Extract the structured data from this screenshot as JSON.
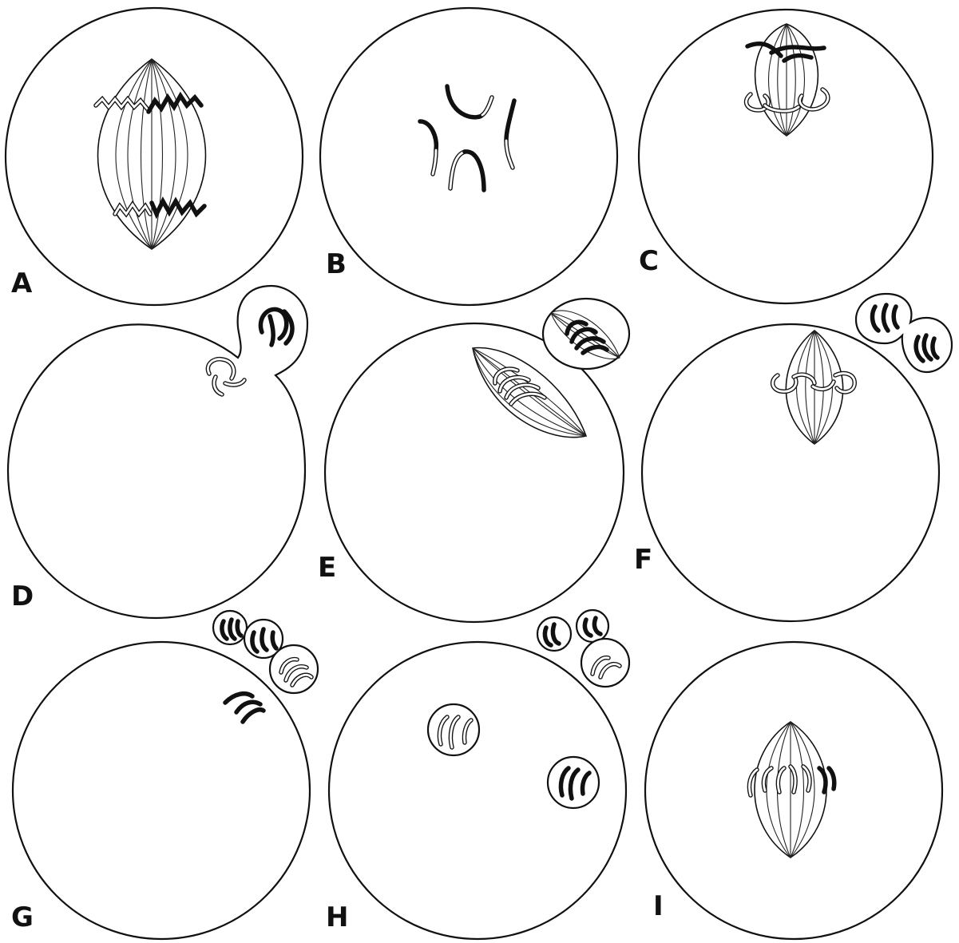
{
  "panels": [
    {
      "id": "a",
      "label": "A"
    },
    {
      "id": "b",
      "label": "B"
    },
    {
      "id": "c",
      "label": "C"
    },
    {
      "id": "d",
      "label": "D"
    },
    {
      "id": "e",
      "label": "E"
    },
    {
      "id": "f",
      "label": "F"
    },
    {
      "id": "g",
      "label": "G"
    },
    {
      "id": "h",
      "label": "H"
    },
    {
      "id": "i",
      "label": "I"
    }
  ]
}
